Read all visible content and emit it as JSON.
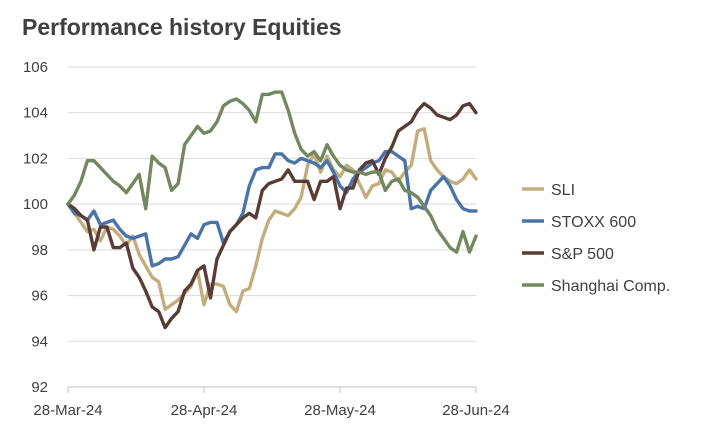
{
  "chart_data": {
    "type": "line",
    "title": "Performance history Equities",
    "xlabel": "",
    "ylabel": "",
    "ylim": [
      92,
      106
    ],
    "yticks": [
      92,
      94,
      96,
      98,
      100,
      102,
      104,
      106
    ],
    "x_tick_labels": [
      "28-Mar-24",
      "28-Apr-24",
      "28-May-24",
      "28-Jun-24"
    ],
    "x_tick_index": [
      0,
      21,
      42,
      63
    ],
    "grid": "horizontal",
    "legend_position": "right",
    "series": [
      {
        "name": "SLI",
        "color": "#c3ad7d",
        "values": [
          100,
          99.6,
          99.2,
          98.8,
          98.9,
          98.4,
          99,
          98.9,
          98.6,
          98.2,
          98.6,
          97.8,
          97.3,
          96.8,
          96.6,
          95.4,
          95.6,
          95.8,
          96.1,
          96.4,
          97.1,
          95.6,
          96.5,
          96.5,
          96.4,
          95.6,
          95.3,
          96.2,
          96.3,
          97.3,
          98.5,
          99.3,
          99.7,
          99.6,
          99.5,
          99.8,
          100.3,
          101.7,
          102.2,
          101.4,
          102.1,
          101.5,
          101.2,
          101.7,
          101.5,
          100.9,
          100.3,
          100.8,
          100.9,
          101.5,
          101.4,
          101,
          101.4,
          101.7,
          103.2,
          103.3,
          101.9,
          101.5,
          101.2,
          101,
          100.9,
          101.1,
          101.5,
          101.1
        ]
      },
      {
        "name": "STOXX 600",
        "color": "#4a74a8",
        "values": [
          100,
          99.6,
          99.5,
          99.3,
          99.7,
          99.1,
          99.2,
          99.3,
          98.9,
          98.6,
          98.5,
          98.6,
          98.7,
          97.3,
          97.4,
          97.6,
          97.6,
          97.7,
          98.2,
          98.7,
          98.5,
          99.1,
          99.2,
          99.2,
          98.3,
          98.8,
          99.1,
          99.6,
          100.8,
          101.5,
          101.6,
          101.6,
          102.2,
          102.2,
          101.9,
          101.8,
          102,
          101.9,
          101.8,
          101.6,
          101.9,
          101.4,
          100.8,
          100.5,
          101.1,
          101.4,
          101.6,
          101.8,
          101.9,
          102.3,
          102.3,
          102.1,
          101.9,
          99.8,
          99.9,
          99.8,
          100.6,
          100.9,
          101.2,
          100.8,
          100.2,
          99.8,
          99.7,
          99.7
        ]
      },
      {
        "name": "S&P 500",
        "color": "#5a3c37",
        "values": [
          100,
          99.8,
          99.5,
          99.3,
          98,
          99,
          99,
          98.1,
          98.1,
          98.3,
          97.2,
          96.8,
          96.2,
          95.5,
          95.3,
          94.6,
          95,
          95.3,
          96.2,
          96.5,
          97.1,
          97.3,
          95.9,
          97.6,
          98.2,
          98.8,
          99.1,
          99.4,
          99.6,
          99.4,
          100.6,
          100.9,
          101,
          101.1,
          101.5,
          101,
          101,
          101,
          100.2,
          101,
          101,
          101.2,
          99.8,
          100.7,
          100.7,
          101.5,
          101.8,
          101.9,
          101.3,
          102,
          102.5,
          103.2,
          103.4,
          103.6,
          104.1,
          104.4,
          104.2,
          103.9,
          103.8,
          103.7,
          103.9,
          104.3,
          104.4,
          104
        ]
      },
      {
        "name": "Shanghai Comp.",
        "color": "#74885f",
        "values": [
          100,
          100.4,
          101,
          101.9,
          101.9,
          101.6,
          101.3,
          101,
          100.8,
          100.5,
          100.9,
          101.3,
          99.8,
          102.1,
          101.8,
          101.6,
          100.6,
          100.9,
          102.6,
          103,
          103.4,
          103.1,
          103.2,
          103.6,
          104.3,
          104.5,
          104.6,
          104.4,
          104.1,
          103.6,
          104.8,
          104.8,
          104.9,
          104.9,
          104.1,
          103.1,
          102.4,
          102.1,
          102.3,
          101.9,
          102.6,
          102.1,
          101.7,
          101.5,
          101.4,
          101.4,
          101.3,
          101.4,
          101.4,
          100.6,
          101,
          101.1,
          100.6,
          100.5,
          100.3,
          99.9,
          99.5,
          98.9,
          98.5,
          98.1,
          97.9,
          98.8,
          97.9,
          98.6
        ]
      }
    ]
  }
}
